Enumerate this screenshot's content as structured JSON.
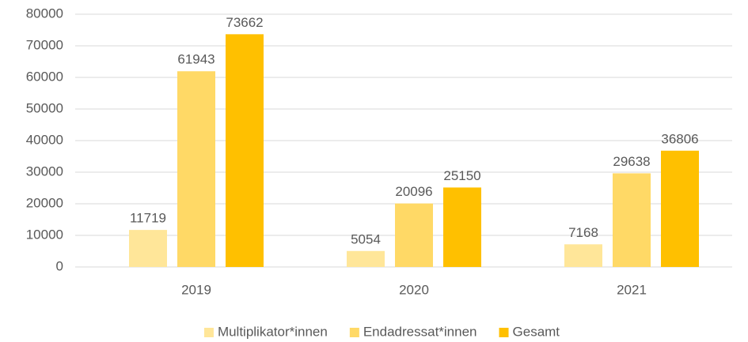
{
  "chart_data": {
    "type": "bar",
    "categories": [
      "2019",
      "2020",
      "2021"
    ],
    "series": [
      {
        "name": "Multiplikator*innen",
        "color": "#FFE699",
        "values": [
          11719,
          5054,
          7168
        ]
      },
      {
        "name": "Endadressat*innen",
        "color": "#FFD966",
        "values": [
          61943,
          20096,
          29638
        ]
      },
      {
        "name": "Gesamt",
        "color": "#FFC000",
        "values": [
          73662,
          25150,
          36806
        ]
      }
    ],
    "ylim": [
      0,
      80000
    ],
    "yticks": [
      0,
      10000,
      20000,
      30000,
      40000,
      50000,
      60000,
      70000,
      80000
    ],
    "grid": true,
    "legend": "bottom"
  }
}
